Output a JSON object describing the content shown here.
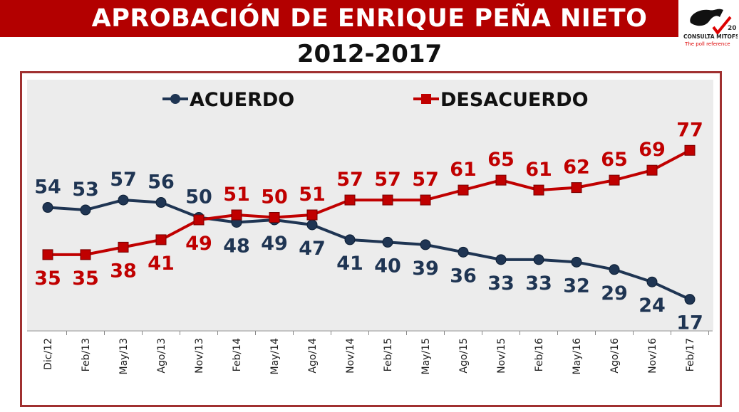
{
  "header": {
    "title": "APROBACIÓN DE ENRIQUE PEÑA NIETO",
    "subtitle": "2012-2017"
  },
  "logo": {
    "text": "CONSULTA MITOFSKY",
    "tagline": "The poll reference",
    "badge": "20"
  },
  "colors": {
    "banner": "#b30000",
    "acuerdo": "#1f3553",
    "desacuerdo": "#c00000",
    "plot_bg": "#ececec"
  },
  "chart_data": {
    "type": "line",
    "categories": [
      "Dic/12",
      "Feb/13",
      "May/13",
      "Ago/13",
      "Nov/13",
      "Feb/14",
      "May/14",
      "Ago/14",
      "Nov/14",
      "Feb/15",
      "May/15",
      "Ago/15",
      "Nov/15",
      "Feb/16",
      "May/16",
      "Ago/16",
      "Nov/16",
      "Feb/17"
    ],
    "series": [
      {
        "name": "ACUERDO",
        "values": [
          54,
          53,
          57,
          56,
          50,
          48,
          49,
          47,
          41,
          40,
          39,
          36,
          33,
          33,
          32,
          29,
          24,
          17
        ]
      },
      {
        "name": "DESACUERDO",
        "values": [
          35,
          35,
          38,
          41,
          49,
          51,
          50,
          51,
          57,
          57,
          57,
          61,
          65,
          61,
          62,
          65,
          69,
          77
        ]
      }
    ],
    "legend": "top",
    "grid": false
  }
}
